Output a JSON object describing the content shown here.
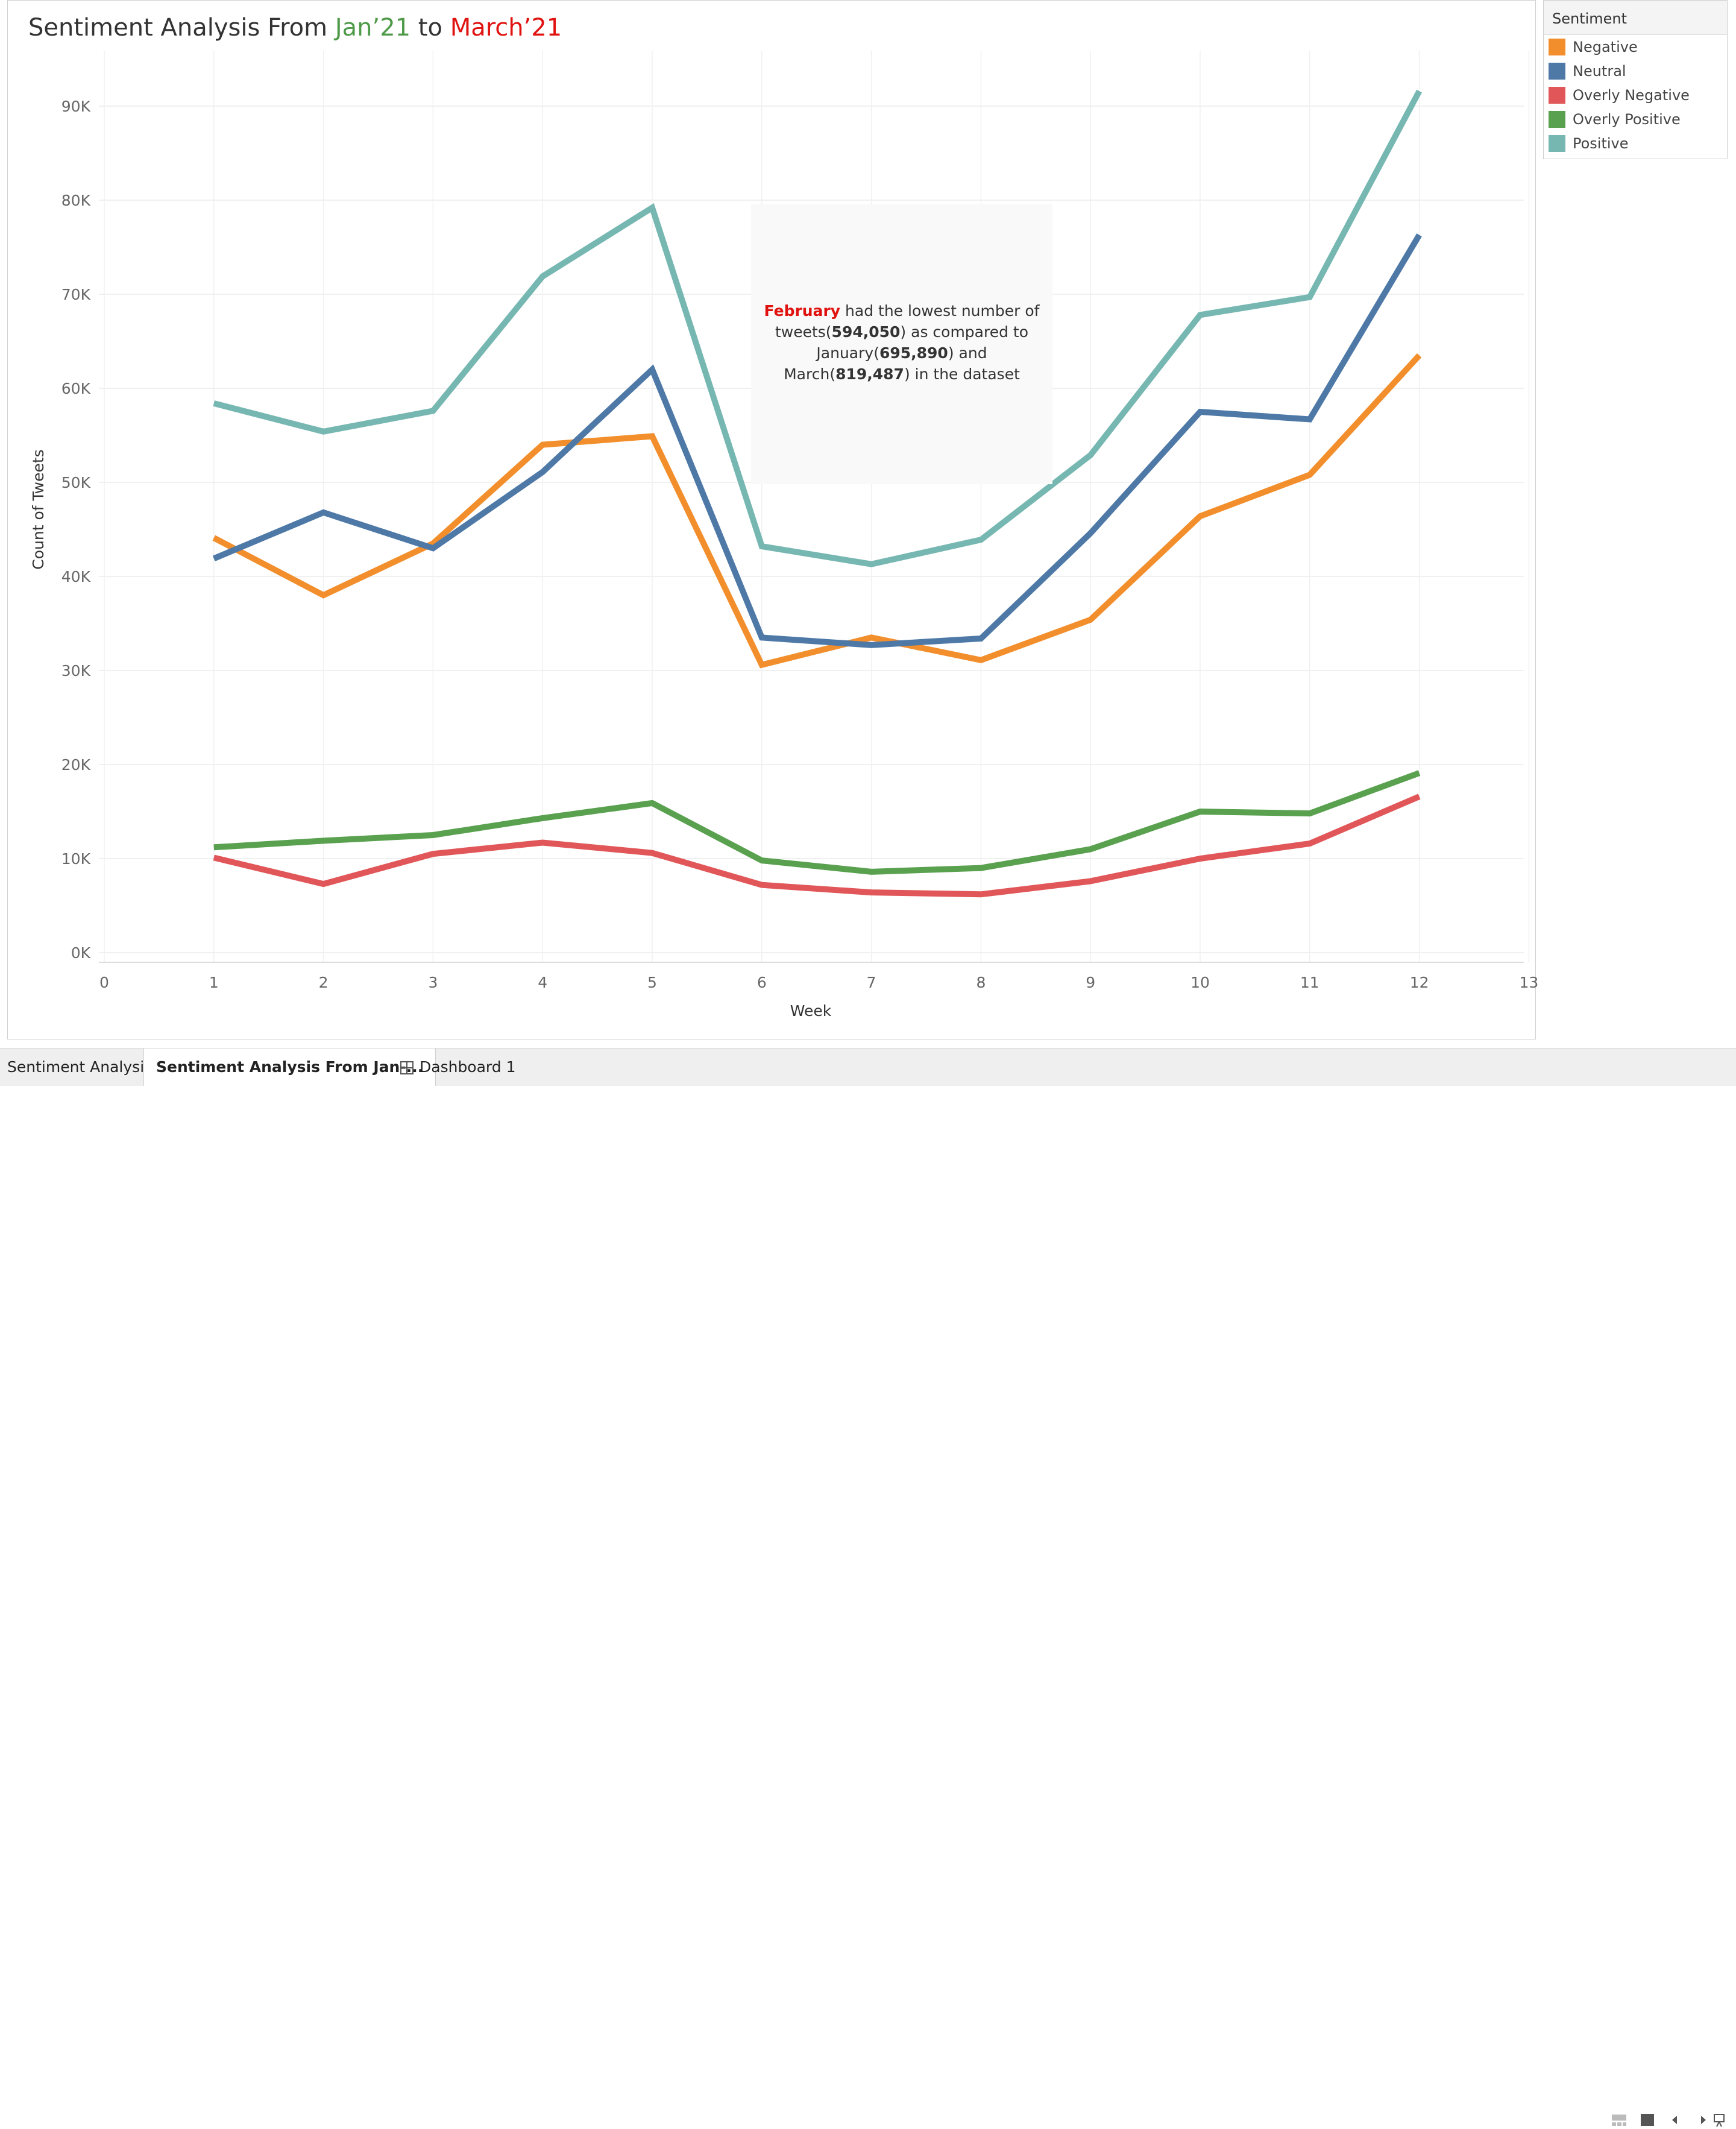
{
  "title": {
    "prefix": "Sentiment Analysis From ",
    "start": "Jan’21",
    "middle": " to ",
    "end": "March’21"
  },
  "annotation": {
    "month": "February",
    "t1": " had the lowest number of tweets(",
    "v1": "594,050",
    "t2": ") as compared to January(",
    "v2": "695,890",
    "t3": ") and March(",
    "v3": "819,487",
    "t4": ") in the dataset"
  },
  "legend": {
    "title": "Sentiment"
  },
  "tabs": [
    {
      "label": "Sentiment Analysis"
    },
    {
      "label": "Sentiment Analysis From Jan-..."
    },
    {
      "label": "Dashboard 1"
    }
  ],
  "chart_data": {
    "type": "line",
    "xlabel": "Week",
    "ylabel": "Count of Tweets",
    "xlim": [
      0,
      13
    ],
    "ylim": [
      0,
      95000
    ],
    "x_ticks": [
      0,
      1,
      2,
      3,
      4,
      5,
      6,
      7,
      8,
      9,
      10,
      11,
      12,
      13
    ],
    "y_ticks": [
      0,
      10000,
      20000,
      30000,
      40000,
      50000,
      60000,
      70000,
      80000,
      90000
    ],
    "y_tick_labels": [
      "0K",
      "10K",
      "20K",
      "30K",
      "40K",
      "50K",
      "60K",
      "70K",
      "80K",
      "90K"
    ],
    "grid": true,
    "legend_position": "right",
    "x": [
      1,
      2,
      3,
      4,
      5,
      6,
      7,
      8,
      9,
      10,
      11,
      12
    ],
    "series": [
      {
        "name": "Negative",
        "color": "#f28e2b",
        "values": [
          44100,
          38000,
          43500,
          54000,
          54900,
          30600,
          33500,
          31100,
          35400,
          46400,
          50800,
          63500
        ]
      },
      {
        "name": "Neutral",
        "color": "#4e79a7",
        "values": [
          41900,
          46800,
          43000,
          51100,
          62000,
          33500,
          32700,
          33400,
          44600,
          57500,
          56700,
          76300
        ]
      },
      {
        "name": "Overly Negative",
        "color": "#e15759",
        "values": [
          10100,
          7300,
          10500,
          11700,
          10600,
          7200,
          6400,
          6200,
          7600,
          10000,
          11600,
          16600
        ]
      },
      {
        "name": "Overly Positive",
        "color": "#59a14f",
        "values": [
          11200,
          11900,
          12500,
          14300,
          15900,
          9800,
          8600,
          9000,
          11000,
          15000,
          14800,
          19100
        ]
      },
      {
        "name": "Positive",
        "color": "#76b7b2",
        "values": [
          58400,
          55400,
          57600,
          71900,
          79200,
          43200,
          41300,
          43900,
          52900,
          67800,
          69700,
          91600
        ]
      }
    ]
  }
}
